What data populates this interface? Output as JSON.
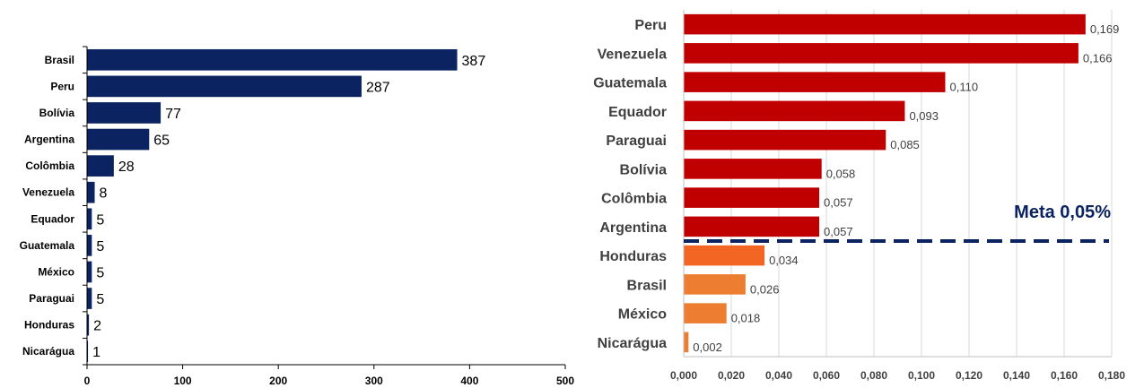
{
  "chart_data": [
    {
      "type": "bar",
      "orientation": "horizontal",
      "categories": [
        "Brasil",
        "Peru",
        "Bolívia",
        "Argentina",
        "Colômbia",
        "Venezuela",
        "Equador",
        "Guatemala",
        "México",
        "Paraguai",
        "Honduras",
        "Nicarágua"
      ],
      "values": [
        387,
        287,
        77,
        65,
        28,
        8,
        5,
        5,
        5,
        5,
        2,
        1
      ],
      "value_labels": [
        "387",
        "287",
        "77",
        "65",
        "28",
        "8",
        "5",
        "5",
        "5",
        "5",
        "2",
        "1"
      ],
      "xlim": [
        0,
        500
      ],
      "xticks": [
        "0",
        "100",
        "200",
        "300",
        "400",
        "500"
      ],
      "bar_color": "#0b2461",
      "grid": false
    },
    {
      "type": "bar",
      "orientation": "horizontal",
      "categories": [
        "Peru",
        "Venezuela",
        "Guatemala",
        "Equador",
        "Paraguai",
        "Bolívia",
        "Colômbia",
        "Argentina",
        "Honduras",
        "Brasil",
        "México",
        "Nicarágua"
      ],
      "values": [
        0.169,
        0.166,
        0.11,
        0.093,
        0.085,
        0.058,
        0.057,
        0.057,
        0.034,
        0.026,
        0.018,
        0.002
      ],
      "value_labels": [
        "0,169",
        "0,166",
        "0,110",
        "0,093",
        "0,085",
        "0,058",
        "0,057",
        "0,057",
        "0,034",
        "0,026",
        "0,018",
        "0,002"
      ],
      "bar_colors": [
        "#c00000",
        "#c00000",
        "#c00000",
        "#c00000",
        "#c00000",
        "#c00000",
        "#c00000",
        "#c00000",
        "#f26522",
        "#ed7d31",
        "#ed7d31",
        "#ed7d31"
      ],
      "xlim": [
        0,
        0.18
      ],
      "xticks": [
        "0,000",
        "0,020",
        "0,040",
        "0,060",
        "0,080",
        "0,100",
        "0,120",
        "0,140",
        "0,160",
        "0,180"
      ],
      "grid": true,
      "reference_line": {
        "value": 0.05,
        "label": "Meta 0,05%",
        "color": "#0b2461"
      }
    }
  ]
}
